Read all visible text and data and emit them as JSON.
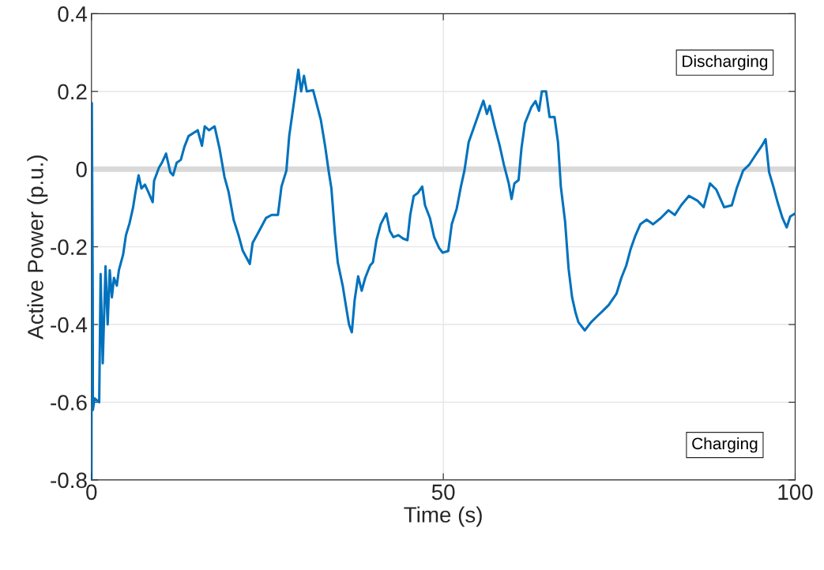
{
  "chart_data": {
    "type": "line",
    "xlabel": "Time (s)",
    "ylabel": "Active Power (p.u.)",
    "xlim": [
      0,
      100
    ],
    "xticks": [
      0,
      50,
      100
    ],
    "ylim": [
      -0.8,
      0.4
    ],
    "yticks": [
      -0.8,
      -0.6,
      -0.4,
      -0.2,
      0,
      0.2,
      0.4
    ],
    "grid": true,
    "ref_lines": [
      {
        "axis": "y",
        "value": 0,
        "color": "#d9d9d9"
      }
    ],
    "annotations": [
      "Discharging",
      "Charging"
    ],
    "series": [
      {
        "color": "#0072bd",
        "x": [
          0,
          0.05,
          0.18,
          0.2,
          0.45,
          1.1,
          1.3,
          1.6,
          2.0,
          2.3,
          2.6,
          2.9,
          3.2,
          3.6,
          3.9,
          4.5,
          4.9,
          5.4,
          5.9,
          6.25,
          6.7,
          7.1,
          7.6,
          8.1,
          8.7,
          8.9,
          9.6,
          10.0,
          10.6,
          11.2,
          11.6,
          12.1,
          12.7,
          13.2,
          13.8,
          15.1,
          15.7,
          16.1,
          16.7,
          17.5,
          18.2,
          18.9,
          19.5,
          20.2,
          20.9,
          21.5,
          22.5,
          22.9,
          23.8,
          24.8,
          25.6,
          26.5,
          27.0,
          27.7,
          28.1,
          28.8,
          29.4,
          29.8,
          30.2,
          30.6,
          31.5,
          32.6,
          33.2,
          33.7,
          34.1,
          34.6,
          35.0,
          35.7,
          36.1,
          36.6,
          37.0,
          37.4,
          37.9,
          38.4,
          38.9,
          39.6,
          40.0,
          40.5,
          41.1,
          41.9,
          42.4,
          42.9,
          43.6,
          44.3,
          44.9,
          45.3,
          45.8,
          46.4,
          47.0,
          47.4,
          48.1,
          48.7,
          49.4,
          49.9,
          50.7,
          51.2,
          51.9,
          52.5,
          53.0,
          53.6,
          54.4,
          55.1,
          55.7,
          56.2,
          56.6,
          57.3,
          58.0,
          58.6,
          59.3,
          59.7,
          60.1,
          60.7,
          61.1,
          61.6,
          62.5,
          63.1,
          63.6,
          64.0,
          64.6,
          65.1,
          65.8,
          66.3,
          66.7,
          67.3,
          67.8,
          68.3,
          68.8,
          69.2,
          70.1,
          71.0,
          71.9,
          72.6,
          73.5,
          74.6,
          75.3,
          76.0,
          76.6,
          77.3,
          78.0,
          78.9,
          79.8,
          80.9,
          82.0,
          82.9,
          83.8,
          84.9,
          86.1,
          87.0,
          87.9,
          88.8,
          89.9,
          91.0,
          91.7,
          92.6,
          93.5,
          94.4,
          95.3,
          95.8,
          96.3,
          96.9,
          97.5,
          98.2,
          98.8,
          99.3,
          100
        ],
        "values": [
          -0.8,
          0.17,
          -0.33,
          -0.62,
          -0.59,
          -0.6,
          -0.27,
          -0.5,
          -0.25,
          -0.4,
          -0.26,
          -0.33,
          -0.28,
          -0.3,
          -0.26,
          -0.22,
          -0.17,
          -0.14,
          -0.1,
          -0.06,
          -0.016,
          -0.05,
          -0.04,
          -0.06,
          -0.085,
          -0.03,
          0.004,
          0.016,
          0.04,
          -0.008,
          -0.016,
          0.016,
          0.024,
          0.057,
          0.085,
          0.1,
          0.06,
          0.11,
          0.1,
          0.11,
          0.053,
          -0.02,
          -0.06,
          -0.13,
          -0.17,
          -0.21,
          -0.244,
          -0.19,
          -0.16,
          -0.126,
          -0.118,
          -0.118,
          -0.045,
          -0.004,
          0.085,
          0.175,
          0.256,
          0.2,
          0.24,
          0.2,
          0.203,
          0.126,
          0.06,
          -0.004,
          -0.05,
          -0.167,
          -0.24,
          -0.3,
          -0.345,
          -0.4,
          -0.42,
          -0.337,
          -0.276,
          -0.313,
          -0.28,
          -0.248,
          -0.24,
          -0.183,
          -0.142,
          -0.114,
          -0.159,
          -0.175,
          -0.17,
          -0.179,
          -0.183,
          -0.118,
          -0.069,
          -0.061,
          -0.045,
          -0.093,
          -0.126,
          -0.175,
          -0.203,
          -0.215,
          -0.211,
          -0.142,
          -0.102,
          -0.045,
          -0.004,
          0.069,
          0.11,
          0.146,
          0.176,
          0.142,
          0.163,
          0.11,
          0.061,
          0.012,
          -0.037,
          -0.077,
          -0.037,
          -0.028,
          0.053,
          0.118,
          0.159,
          0.175,
          0.15,
          0.2,
          0.2,
          0.134,
          0.134,
          0.069,
          -0.045,
          -0.134,
          -0.256,
          -0.33,
          -0.37,
          -0.394,
          -0.415,
          -0.394,
          -0.378,
          -0.366,
          -0.35,
          -0.321,
          -0.28,
          -0.248,
          -0.207,
          -0.171,
          -0.142,
          -0.13,
          -0.142,
          -0.126,
          -0.106,
          -0.118,
          -0.093,
          -0.069,
          -0.081,
          -0.098,
          -0.037,
          -0.053,
          -0.098,
          -0.093,
          -0.049,
          -0.004,
          0.012,
          0.037,
          0.061,
          0.077,
          -0.008,
          -0.045,
          -0.085,
          -0.126,
          -0.15,
          -0.122,
          -0.114
        ]
      }
    ]
  }
}
